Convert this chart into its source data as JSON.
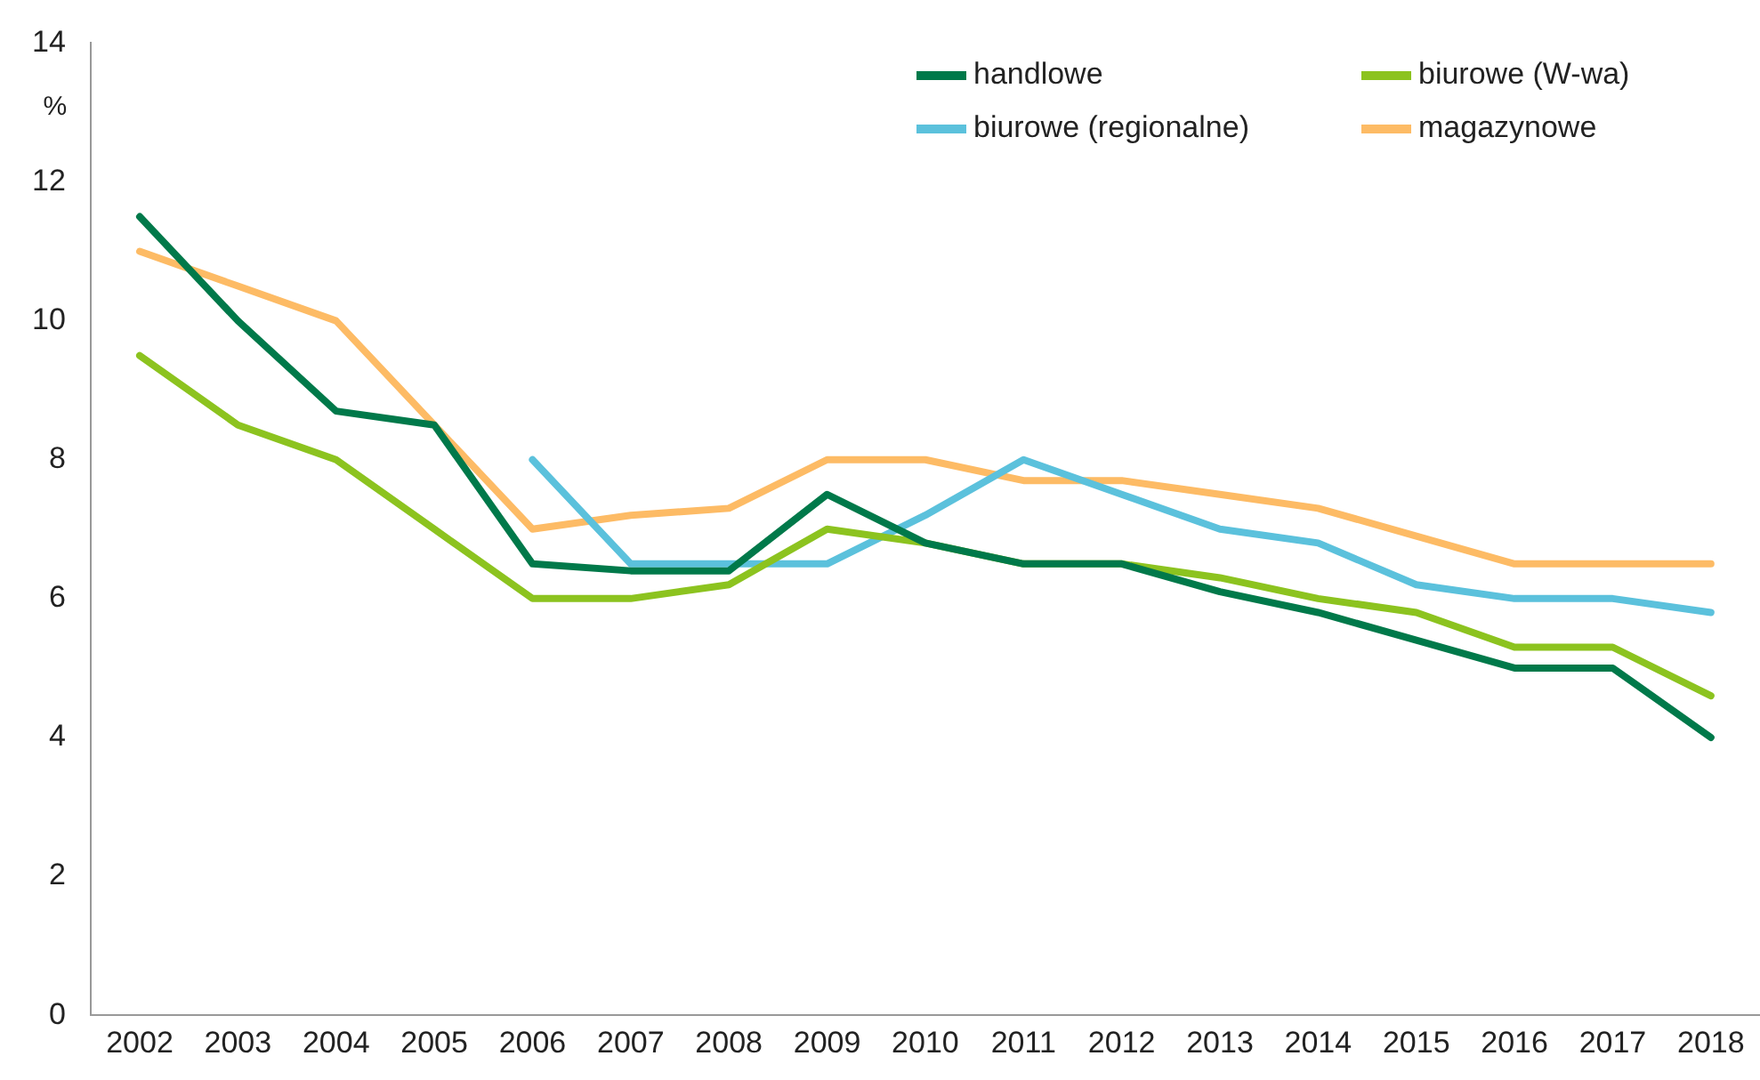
{
  "chart_data": {
    "type": "line",
    "ylabel": "%",
    "categories": [
      "2002",
      "2003",
      "2004",
      "2005",
      "2006",
      "2007",
      "2008",
      "2009",
      "2010",
      "2011",
      "2012",
      "2013",
      "2014",
      "2015",
      "2016",
      "2017",
      "2018"
    ],
    "series": [
      {
        "name": "handlowe",
        "color": "#00794a",
        "values": [
          11.5,
          10.0,
          8.7,
          8.5,
          6.5,
          6.4,
          6.4,
          7.5,
          6.8,
          6.5,
          6.5,
          6.1,
          5.8,
          5.4,
          5.0,
          5.0,
          4.0
        ]
      },
      {
        "name": "biurowe (W-wa)",
        "color": "#8cc31f",
        "values": [
          9.5,
          8.5,
          8.0,
          7.0,
          6.0,
          6.0,
          6.2,
          7.0,
          6.8,
          6.5,
          6.5,
          6.3,
          6.0,
          5.8,
          5.3,
          5.3,
          4.6
        ]
      },
      {
        "name": "biurowe (regionalne)",
        "color": "#5bc1dc",
        "values": [
          null,
          null,
          null,
          null,
          8.0,
          6.5,
          6.5,
          6.5,
          7.2,
          8.0,
          7.5,
          7.0,
          6.8,
          6.2,
          6.0,
          6.0,
          5.8
        ]
      },
      {
        "name": "magazynowe",
        "color": "#fdbb65",
        "values": [
          11.0,
          10.5,
          10.0,
          8.5,
          7.0,
          7.2,
          7.3,
          8.0,
          8.0,
          7.7,
          7.7,
          7.5,
          7.3,
          6.9,
          6.5,
          6.5,
          6.5
        ]
      }
    ],
    "ylim": [
      0,
      14
    ],
    "yticks": [
      0,
      2,
      4,
      6,
      8,
      10,
      12,
      14
    ],
    "grid": false,
    "legend": "top right",
    "marker": "none",
    "line_style": "solid"
  }
}
